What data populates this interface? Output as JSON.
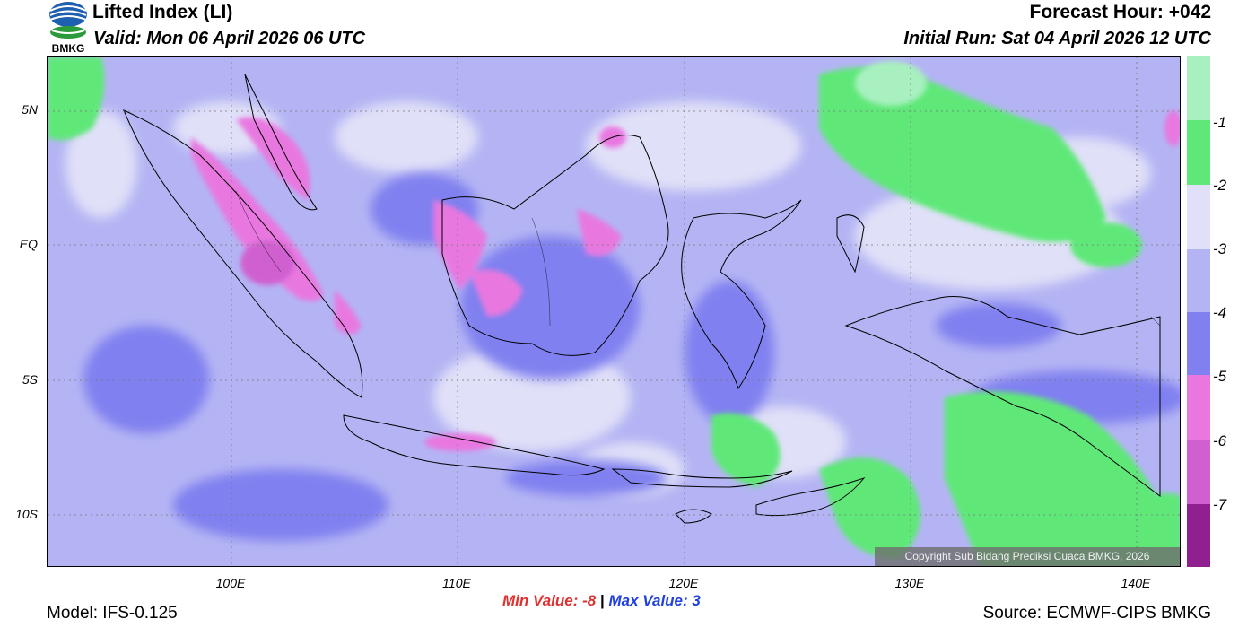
{
  "header": {
    "title": "Lifted Index (LI)",
    "valid": "Valid: Mon 06 April 2026 06 UTC",
    "forecast_hour": "Forecast Hour: +042",
    "initial_run": "Initial Run: Sat 04 April 2026 12 UTC",
    "logo_text": "BMKG"
  },
  "map": {
    "lat_labels": [
      "5N",
      "EQ",
      "5S",
      "10S"
    ],
    "lon_labels": [
      "100E",
      "110E",
      "120E",
      "130E",
      "140E"
    ],
    "copyright": "Copyright Sub Bidang Prediksi Cuaca BMKG, 2026"
  },
  "colorbar": {
    "labels": [
      "-1",
      "-2",
      "-3",
      "-4",
      "-5",
      "-6",
      "-7"
    ],
    "colors": [
      "#a8f0c0",
      "#5ee878",
      "#e0e0f8",
      "#b4b4f4",
      "#8080f0",
      "#e878e0",
      "#d060d0",
      "#b048b8",
      "#902090"
    ]
  },
  "stats": {
    "min_label": "Min Value:",
    "min_value": "-8",
    "separator": "|",
    "max_label": "Max Value:",
    "max_value": "3"
  },
  "footer": {
    "model": "Model: IFS-0.125",
    "source": "Source: ECMWF-CIPS BMKG"
  }
}
